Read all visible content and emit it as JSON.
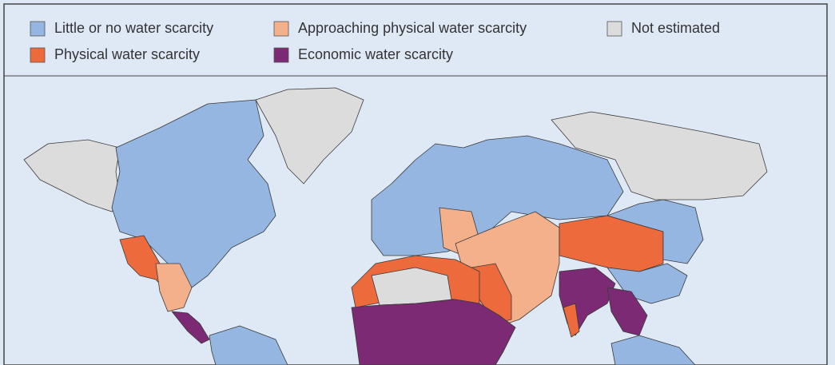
{
  "legend": {
    "items": [
      {
        "label": "Little or no water scarcity",
        "color": "#94b6e0"
      },
      {
        "label": "Approaching physical water scarcity",
        "color": "#f4b08a"
      },
      {
        "label": "Not estimated",
        "color": "#dcdcdc"
      },
      {
        "label": "Physical water scarcity",
        "color": "#ec6a3c"
      },
      {
        "label": "Economic water scarcity",
        "color": "#7b2a73"
      }
    ]
  }
}
